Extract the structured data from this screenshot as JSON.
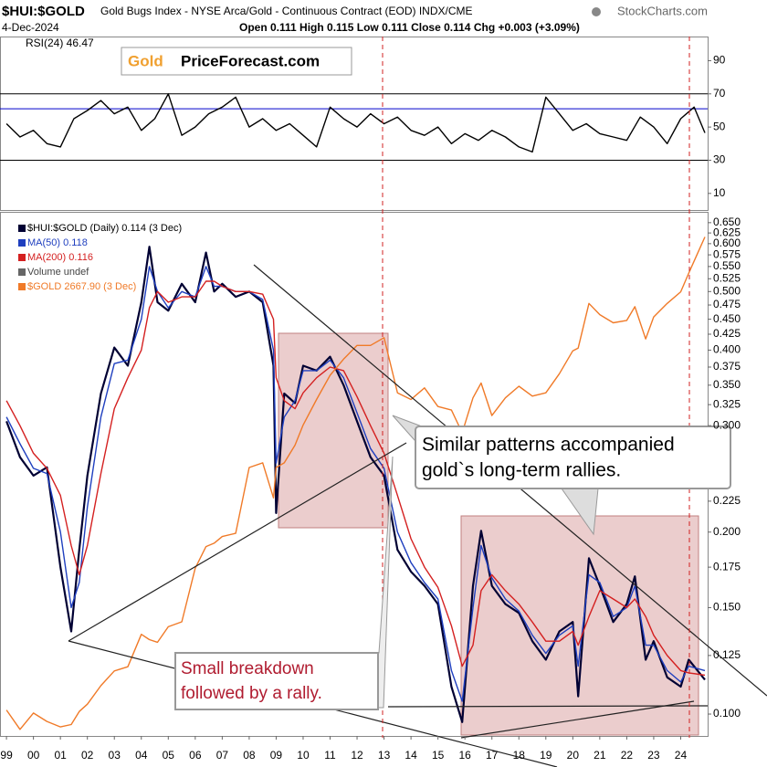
{
  "header": {
    "symbol": "$HUI:$GOLD",
    "description": "Gold Bugs Index - NYSE Arca/Gold - Continuous Contract (EOD) INDX/CME",
    "source": "StockCharts.com",
    "date": "4-Dec-2024",
    "quote": "Open 0.111 High 0.115 Low 0.111 Close 0.114 Chg +0.003 (+3.09%)"
  },
  "logo": {
    "part1": "Gold",
    "part2": "PriceForecast.com"
  },
  "chart_data": [
    {
      "type": "line",
      "title": "RSI(24) 46.47",
      "x": [
        1999.0,
        1999.5,
        2000.0,
        2000.5,
        2001.0,
        2001.5,
        2002.0,
        2002.5,
        2003.0,
        2003.5,
        2004.0,
        2004.5,
        2005.0,
        2005.5,
        2006.0,
        2006.5,
        2007.0,
        2007.5,
        2008.0,
        2008.5,
        2009.0,
        2009.5,
        2010.0,
        2010.5,
        2011.0,
        2011.5,
        2012.0,
        2012.5,
        2013.0,
        2013.5,
        2014.0,
        2014.5,
        2015.0,
        2015.5,
        2016.0,
        2016.5,
        2017.0,
        2017.5,
        2018.0,
        2018.5,
        2019.0,
        2019.5,
        2020.0,
        2020.5,
        2021.0,
        2021.5,
        2022.0,
        2022.5,
        2023.0,
        2023.5,
        2024.0,
        2024.5,
        2024.9
      ],
      "series": [
        {
          "name": "RSI(24)",
          "color": "#000000",
          "values": [
            52,
            44,
            48,
            40,
            38,
            55,
            60,
            66,
            58,
            62,
            48,
            55,
            70,
            45,
            50,
            58,
            62,
            68,
            50,
            55,
            48,
            52,
            45,
            38,
            62,
            55,
            50,
            58,
            52,
            56,
            48,
            45,
            50,
            40,
            46,
            42,
            48,
            44,
            38,
            35,
            68,
            58,
            48,
            52,
            46,
            44,
            42,
            56,
            50,
            40,
            55,
            62,
            46.47
          ]
        }
      ],
      "xlim": [
        1998.76,
        2025.0
      ],
      "ylim": [
        0,
        104
      ],
      "yticks": [
        10,
        30,
        50,
        70,
        90
      ],
      "reference_lines": [
        {
          "value": 30,
          "color": "#000000"
        },
        {
          "value": 61,
          "color": "#0000cc"
        },
        {
          "value": 70,
          "color": "#000000"
        }
      ]
    },
    {
      "type": "line",
      "log_scale": true,
      "legend": "upper left",
      "x": [
        1999.0,
        1999.5,
        2000.0,
        2000.5,
        2001.0,
        2001.4,
        2001.7,
        2002.0,
        2002.5,
        2003.0,
        2003.5,
        2004.0,
        2004.3,
        2004.6,
        2005.0,
        2005.5,
        2006.0,
        2006.4,
        2006.7,
        2007.0,
        2007.5,
        2008.0,
        2008.5,
        2008.9,
        2009.0,
        2009.3,
        2009.7,
        2010.0,
        2010.5,
        2011.0,
        2011.5,
        2012.0,
        2012.5,
        2013.0,
        2013.5,
        2014.0,
        2014.5,
        2015.0,
        2015.5,
        2015.9,
        2016.3,
        2016.6,
        2017.0,
        2017.5,
        2018.0,
        2018.5,
        2019.0,
        2019.5,
        2020.0,
        2020.2,
        2020.6,
        2021.0,
        2021.5,
        2022.0,
        2022.3,
        2022.7,
        2023.0,
        2023.5,
        2024.0,
        2024.3,
        2024.9
      ],
      "series": [
        {
          "name": "$HUI:$GOLD (Daily) 0.114 (3 Dec)",
          "color": "#000033",
          "values": [
            0.305,
            0.266,
            0.248,
            0.256,
            0.175,
            0.137,
            0.187,
            0.248,
            0.339,
            0.404,
            0.377,
            0.48,
            0.593,
            0.48,
            0.465,
            0.515,
            0.48,
            0.58,
            0.5,
            0.515,
            0.49,
            0.5,
            0.48,
            0.377,
            0.215,
            0.339,
            0.327,
            0.377,
            0.37,
            0.39,
            0.35,
            0.305,
            0.266,
            0.248,
            0.187,
            0.172,
            0.163,
            0.152,
            0.111,
            0.097,
            0.163,
            0.201,
            0.163,
            0.152,
            0.147,
            0.132,
            0.123,
            0.137,
            0.142,
            0.107,
            0.181,
            0.163,
            0.142,
            0.152,
            0.169,
            0.123,
            0.132,
            0.115,
            0.111,
            0.123,
            0.114
          ]
        },
        {
          "name": "MA(50) 0.118",
          "color": "#1f3fbf",
          "values": [
            0.31,
            0.28,
            0.255,
            0.25,
            0.2,
            0.15,
            0.165,
            0.22,
            0.31,
            0.38,
            0.385,
            0.45,
            0.55,
            0.5,
            0.47,
            0.5,
            0.49,
            0.55,
            0.51,
            0.51,
            0.5,
            0.5,
            0.485,
            0.4,
            0.26,
            0.31,
            0.33,
            0.37,
            0.37,
            0.385,
            0.36,
            0.315,
            0.275,
            0.255,
            0.2,
            0.178,
            0.165,
            0.155,
            0.118,
            0.105,
            0.15,
            0.19,
            0.168,
            0.155,
            0.148,
            0.135,
            0.126,
            0.135,
            0.14,
            0.12,
            0.17,
            0.165,
            0.145,
            0.15,
            0.163,
            0.13,
            0.13,
            0.118,
            0.113,
            0.12,
            0.118
          ]
        },
        {
          "name": "MA(200) 0.116",
          "color": "#d42020",
          "values": [
            0.33,
            0.3,
            0.27,
            0.255,
            0.23,
            0.19,
            0.17,
            0.19,
            0.25,
            0.32,
            0.36,
            0.4,
            0.47,
            0.5,
            0.48,
            0.49,
            0.49,
            0.52,
            0.52,
            0.51,
            0.5,
            0.5,
            0.495,
            0.45,
            0.36,
            0.33,
            0.32,
            0.34,
            0.36,
            0.375,
            0.37,
            0.335,
            0.3,
            0.27,
            0.23,
            0.195,
            0.175,
            0.162,
            0.14,
            0.12,
            0.13,
            0.16,
            0.17,
            0.16,
            0.152,
            0.142,
            0.132,
            0.132,
            0.137,
            0.13,
            0.145,
            0.16,
            0.155,
            0.15,
            0.155,
            0.145,
            0.135,
            0.125,
            0.118,
            0.117,
            0.116
          ]
        },
        {
          "name": "$GOLD 2667.90 (3 Dec)",
          "color": "#f07a28",
          "axis": "y2",
          "values": [
            287,
            262,
            283,
            272,
            265,
            268,
            285,
            295,
            322,
            345,
            352,
            410,
            400,
            395,
            425,
            435,
            560,
            620,
            630,
            650,
            660,
            900,
            920,
            780,
            900,
            920,
            1000,
            1100,
            1240,
            1390,
            1500,
            1600,
            1600,
            1660,
            1280,
            1240,
            1310,
            1200,
            1180,
            1060,
            1250,
            1340,
            1150,
            1250,
            1320,
            1260,
            1280,
            1400,
            1560,
            1580,
            1950,
            1850,
            1780,
            1800,
            1920,
            1650,
            1830,
            1950,
            2060,
            2250,
            2667.9
          ]
        }
      ],
      "legend_extra": "Volume undef",
      "xlim": [
        1998.76,
        2025.0
      ],
      "ylim": [
        0.092,
        0.675
      ],
      "y2lim": [
        254,
        2990
      ],
      "yticks": [
        {
          "value": 0.1,
          "label": "0.100"
        },
        {
          "value": 0.125,
          "label": "0.125"
        },
        {
          "value": 0.15,
          "label": "0.150"
        },
        {
          "value": 0.175,
          "label": "0.175"
        },
        {
          "value": 0.2,
          "label": "0.200"
        },
        {
          "value": 0.225,
          "label": "0.225"
        },
        {
          "value": 0.3,
          "label": "0.300"
        },
        {
          "value": 0.325,
          "label": "0.325"
        },
        {
          "value": 0.35,
          "label": "0.350"
        },
        {
          "value": 0.375,
          "label": "0.375"
        },
        {
          "value": 0.4,
          "label": "0.400"
        },
        {
          "value": 0.425,
          "label": "0.425"
        },
        {
          "value": 0.45,
          "label": "0.450"
        },
        {
          "value": 0.475,
          "label": "0.475"
        },
        {
          "value": 0.5,
          "label": "0.500"
        },
        {
          "value": 0.525,
          "label": "0.525"
        },
        {
          "value": 0.55,
          "label": "0.550"
        },
        {
          "value": 0.575,
          "label": "0.575"
        },
        {
          "value": 0.6,
          "label": "0.600"
        },
        {
          "value": 0.625,
          "label": "0.625"
        },
        {
          "value": 0.65,
          "label": "0.650"
        }
      ],
      "xticks": [
        {
          "value": 1999,
          "label": "99"
        },
        {
          "value": 2000,
          "label": "00"
        },
        {
          "value": 2001,
          "label": "01"
        },
        {
          "value": 2002,
          "label": "02"
        },
        {
          "value": 2003,
          "label": "03"
        },
        {
          "value": 2004,
          "label": "04"
        },
        {
          "value": 2005,
          "label": "05"
        },
        {
          "value": 2006,
          "label": "06"
        },
        {
          "value": 2007,
          "label": "07"
        },
        {
          "value": 2008,
          "label": "08"
        },
        {
          "value": 2009,
          "label": "09"
        },
        {
          "value": 2010,
          "label": "10"
        },
        {
          "value": 2011,
          "label": "11"
        },
        {
          "value": 2012,
          "label": "12"
        },
        {
          "value": 2013,
          "label": "13"
        },
        {
          "value": 2014,
          "label": "14"
        },
        {
          "value": 2015,
          "label": "15"
        },
        {
          "value": 2016,
          "label": "16"
        },
        {
          "value": 2017,
          "label": "17"
        },
        {
          "value": 2018,
          "label": "18"
        },
        {
          "value": 2019,
          "label": "19"
        },
        {
          "value": 2020,
          "label": "20"
        },
        {
          "value": 2021,
          "label": "21"
        },
        {
          "value": 2022,
          "label": "22"
        },
        {
          "value": 2023,
          "label": "23"
        },
        {
          "value": 2024,
          "label": "24"
        }
      ],
      "annotations": [
        [
          "Similar patterns accompanied",
          "gold`s long-term rallies."
        ],
        [
          "Small breakdown",
          "followed by a rally."
        ]
      ]
    }
  ]
}
